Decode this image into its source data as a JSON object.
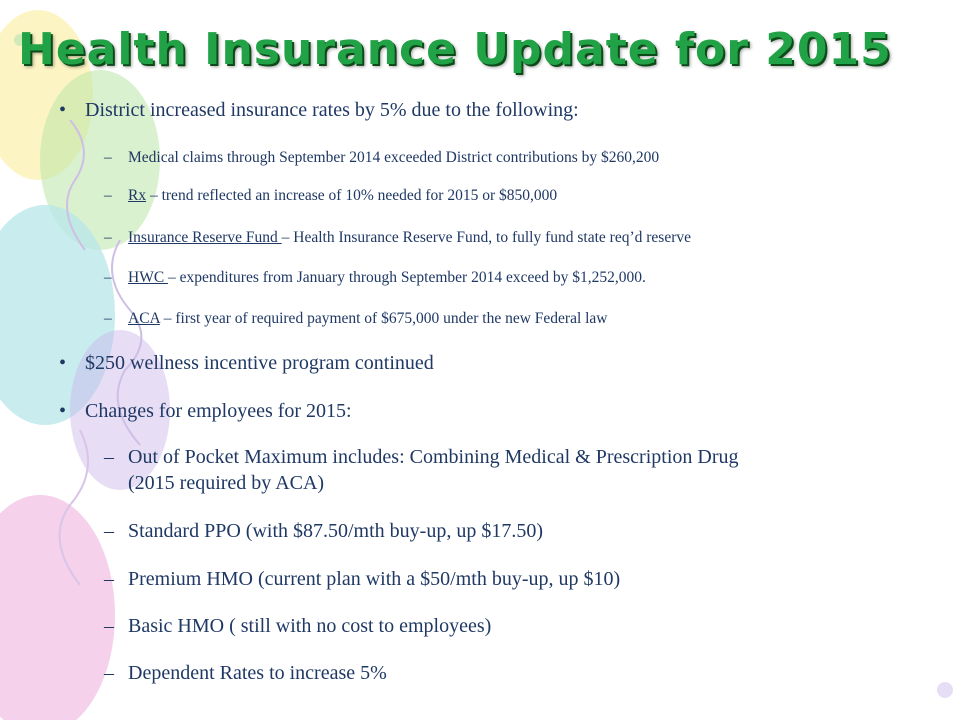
{
  "slide": {
    "title": "Health Insurance Update for 2015",
    "bullet_char": "•",
    "dash_char": "–",
    "reason_intro": "District increased insurance rates by 5% due to the following:",
    "reasons": [
      {
        "label": "",
        "text": "Medical claims through September 2014 exceeded District contributions by $260,200"
      },
      {
        "label": "Rx",
        "text": " – trend reflected an increase of 10% needed for 2015 or $850,000"
      },
      {
        "label": "Insurance Reserve Fund ",
        "text": "– Health Insurance Reserve Fund, to fully fund state req’d reserve"
      },
      {
        "label": "HWC ",
        "text": "– expenditures from January through September 2014 exceed  by $1,252,000."
      },
      {
        "label": "ACA",
        "text": " – first year of required payment of $675,000 under the new Federal law"
      }
    ],
    "wellness": "$250 wellness incentive program continued",
    "changes_intro": "Changes for employees for 2015:",
    "changes": [
      {
        "line1": "Out of Pocket Maximum includes: Combining Medical & Prescription Drug",
        "line2": "(2015 required by ACA)"
      },
      {
        "line1": "Standard PPO (with $87.50/mth buy-up, up $17.50)"
      },
      {
        "line1": "Premium HMO (current plan with a $50/mth buy-up, up $10)"
      },
      {
        "line1": "Basic HMO ( still with no cost to employees)"
      },
      {
        "line1": "Dependent Rates to increase 5%"
      }
    ]
  },
  "colors": {
    "title": "#22a246",
    "text": "#1f3864",
    "balloon_green": "#b9e6a6",
    "balloon_blue": "#b7e6ea",
    "balloon_pink": "#f3c5e6",
    "balloon_yellow": "#fbf2b8",
    "balloon_purple": "#c9b6ea"
  }
}
